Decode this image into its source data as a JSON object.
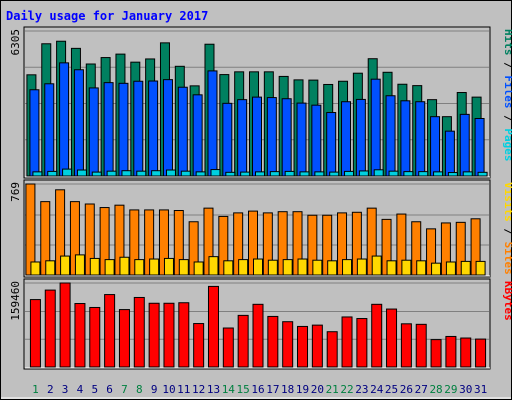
{
  "title": "Daily usage for January 2017",
  "colors": {
    "background": "#c0c0c0",
    "title": "#0000ff",
    "pages": "#00d0e0",
    "files": "#0050ff",
    "hits": "#008060",
    "visits": "#ffd800",
    "sites": "#ff8000",
    "kbytes": "#ff0000",
    "grid": "#808080",
    "weekend_day": "#008040",
    "weekday": "#000080"
  },
  "chart_data": [
    {
      "type": "bar",
      "title": "Daily usage for January 2017",
      "ylabel_parts": [
        {
          "text": "Pages",
          "color": "#00d0e0"
        },
        {
          "text": " / ",
          "color": "#000000"
        },
        {
          "text": "Files",
          "color": "#0050ff"
        },
        {
          "text": " / ",
          "color": "#000000"
        },
        {
          "text": "Hits",
          "color": "#008060"
        }
      ],
      "ymax_label": "6305",
      "ylim": [
        0,
        6305
      ],
      "categories": [
        "1",
        "2",
        "3",
        "4",
        "5",
        "6",
        "7",
        "8",
        "9",
        "10",
        "11",
        "12",
        "13",
        "14",
        "15",
        "16",
        "17",
        "18",
        "19",
        "20",
        "21",
        "22",
        "23",
        "24",
        "25",
        "26",
        "27",
        "28",
        "29",
        "30",
        "31"
      ],
      "series": [
        {
          "name": "Hits",
          "values": [
            4400,
            5750,
            5860,
            5550,
            4870,
            5150,
            5300,
            4950,
            5090,
            5790,
            4770,
            3920,
            5730,
            4410,
            4530,
            4530,
            4530,
            4330,
            4180,
            4170,
            3980,
            4120,
            4470,
            5100,
            4510,
            3990,
            3930,
            3320,
            2580,
            3630,
            3430
          ]
        },
        {
          "name": "Files",
          "values": [
            3750,
            4010,
            4920,
            4620,
            3830,
            4060,
            4030,
            4120,
            4130,
            4190,
            3860,
            3530,
            4570,
            3160,
            3320,
            3430,
            3410,
            3360,
            3170,
            3080,
            2760,
            3230,
            3330,
            4210,
            3490,
            3270,
            3230,
            2580,
            1950,
            2680,
            2500
          ]
        },
        {
          "name": "Pages",
          "values": [
            180,
            200,
            300,
            260,
            170,
            210,
            230,
            210,
            230,
            260,
            210,
            180,
            280,
            160,
            170,
            180,
            190,
            200,
            180,
            180,
            170,
            200,
            220,
            270,
            210,
            190,
            190,
            180,
            150,
            180,
            160
          ]
        }
      ]
    },
    {
      "type": "bar",
      "ylabel_parts": [
        {
          "text": "Sites",
          "color": "#ff8000"
        },
        {
          "text": " / ",
          "color": "#000000"
        },
        {
          "text": "Visits",
          "color": "#ffd800"
        }
      ],
      "ymax_label": "769",
      "ylim": [
        0,
        769
      ],
      "categories": [
        "1",
        "2",
        "3",
        "4",
        "5",
        "6",
        "7",
        "8",
        "9",
        "10",
        "11",
        "12",
        "13",
        "14",
        "15",
        "16",
        "17",
        "18",
        "19",
        "20",
        "21",
        "22",
        "23",
        "24",
        "25",
        "26",
        "27",
        "28",
        "29",
        "30",
        "31"
      ],
      "series": [
        {
          "name": "Sites",
          "values": [
            769,
            620,
            720,
            620,
            600,
            570,
            590,
            550,
            550,
            550,
            545,
            450,
            565,
            495,
            525,
            540,
            525,
            535,
            535,
            505,
            505,
            525,
            530,
            565,
            470,
            515,
            450,
            390,
            440,
            445,
            475
          ]
        },
        {
          "name": "Visits",
          "values": [
            110,
            120,
            160,
            170,
            140,
            130,
            150,
            130,
            135,
            140,
            130,
            110,
            155,
            120,
            130,
            135,
            125,
            130,
            135,
            125,
            120,
            130,
            135,
            160,
            120,
            125,
            120,
            100,
            110,
            115,
            115
          ]
        }
      ]
    },
    {
      "type": "bar",
      "ylabel_parts": [
        {
          "text": "KBytes",
          "color": "#ff0000"
        }
      ],
      "ymax_label": "159460",
      "ylim": [
        0,
        159460
      ],
      "categories": [
        "1",
        "2",
        "3",
        "4",
        "5",
        "6",
        "7",
        "8",
        "9",
        "10",
        "11",
        "12",
        "13",
        "14",
        "15",
        "16",
        "17",
        "18",
        "19",
        "20",
        "21",
        "22",
        "23",
        "24",
        "25",
        "26",
        "27",
        "28",
        "29",
        "30",
        "31"
      ],
      "series": [
        {
          "name": "KBytes",
          "values": [
            128000,
            146000,
            159460,
            120500,
            113000,
            137500,
            109000,
            132000,
            121000,
            121000,
            122000,
            82500,
            153000,
            74000,
            98000,
            119000,
            96000,
            86000,
            77000,
            79500,
            67000,
            95000,
            92000,
            119000,
            110000,
            82000,
            81000,
            52000,
            58000,
            55000,
            53000
          ]
        }
      ]
    }
  ],
  "weekend_days": [
    1,
    7,
    8,
    14,
    15,
    21,
    22,
    28,
    29
  ]
}
